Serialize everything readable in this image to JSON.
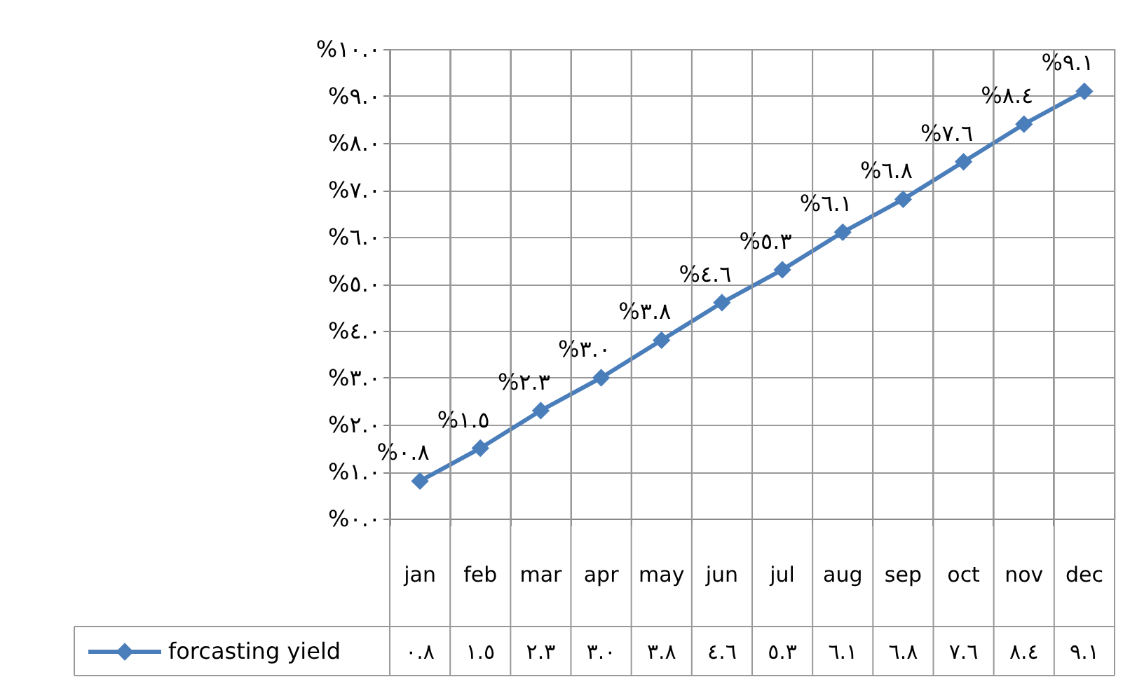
{
  "chart_data": {
    "type": "line",
    "categories": [
      "jan",
      "feb",
      "mar",
      "apr",
      "may",
      "jun",
      "jul",
      "aug",
      "sep",
      "oct",
      "nov",
      "dec"
    ],
    "series": [
      {
        "name": "forcasting yield",
        "color": "#4a7ebb",
        "values": [
          0.8,
          1.5,
          2.3,
          3.0,
          3.8,
          4.6,
          5.3,
          6.1,
          6.8,
          7.6,
          8.4,
          9.1
        ],
        "value_labels": [
          "%٠.٨",
          "%١.٥",
          "%٢.٣",
          "%٣.٠",
          "%٣.٨",
          "%٤.٦",
          "%٥.٣",
          "%٦.١",
          "%٦.٨",
          "%٧.٦",
          "%٨.٤",
          "%٩.١"
        ]
      }
    ],
    "ylim": [
      0,
      10
    ],
    "yticks": [
      {
        "value": 0,
        "label": "%٠.٠"
      },
      {
        "value": 1,
        "label": "%١.٠"
      },
      {
        "value": 2,
        "label": "%٢.٠"
      },
      {
        "value": 3,
        "label": "%٣.٠"
      },
      {
        "value": 4,
        "label": "%٤.٠"
      },
      {
        "value": 5,
        "label": "%٥.٠"
      },
      {
        "value": 6,
        "label": "%٦.٠"
      },
      {
        "value": 7,
        "label": "%٧.٠"
      },
      {
        "value": 8,
        "label": "%٨.٠"
      },
      {
        "value": 9,
        "label": "%٩.٠"
      },
      {
        "value": 10,
        "label": "%١٠.٠"
      }
    ],
    "annotations": [
      "٠.٨",
      "١.٥",
      "٢.٣",
      "٣.٠",
      "٣.٨",
      "٤.٦",
      "٥.٣",
      "٦.١",
      "٦.٨",
      "٧.٦",
      "٨.٤",
      "٩.١"
    ],
    "grid": true,
    "legend": "bottom",
    "marker": "diamond",
    "line_style": "solid"
  }
}
